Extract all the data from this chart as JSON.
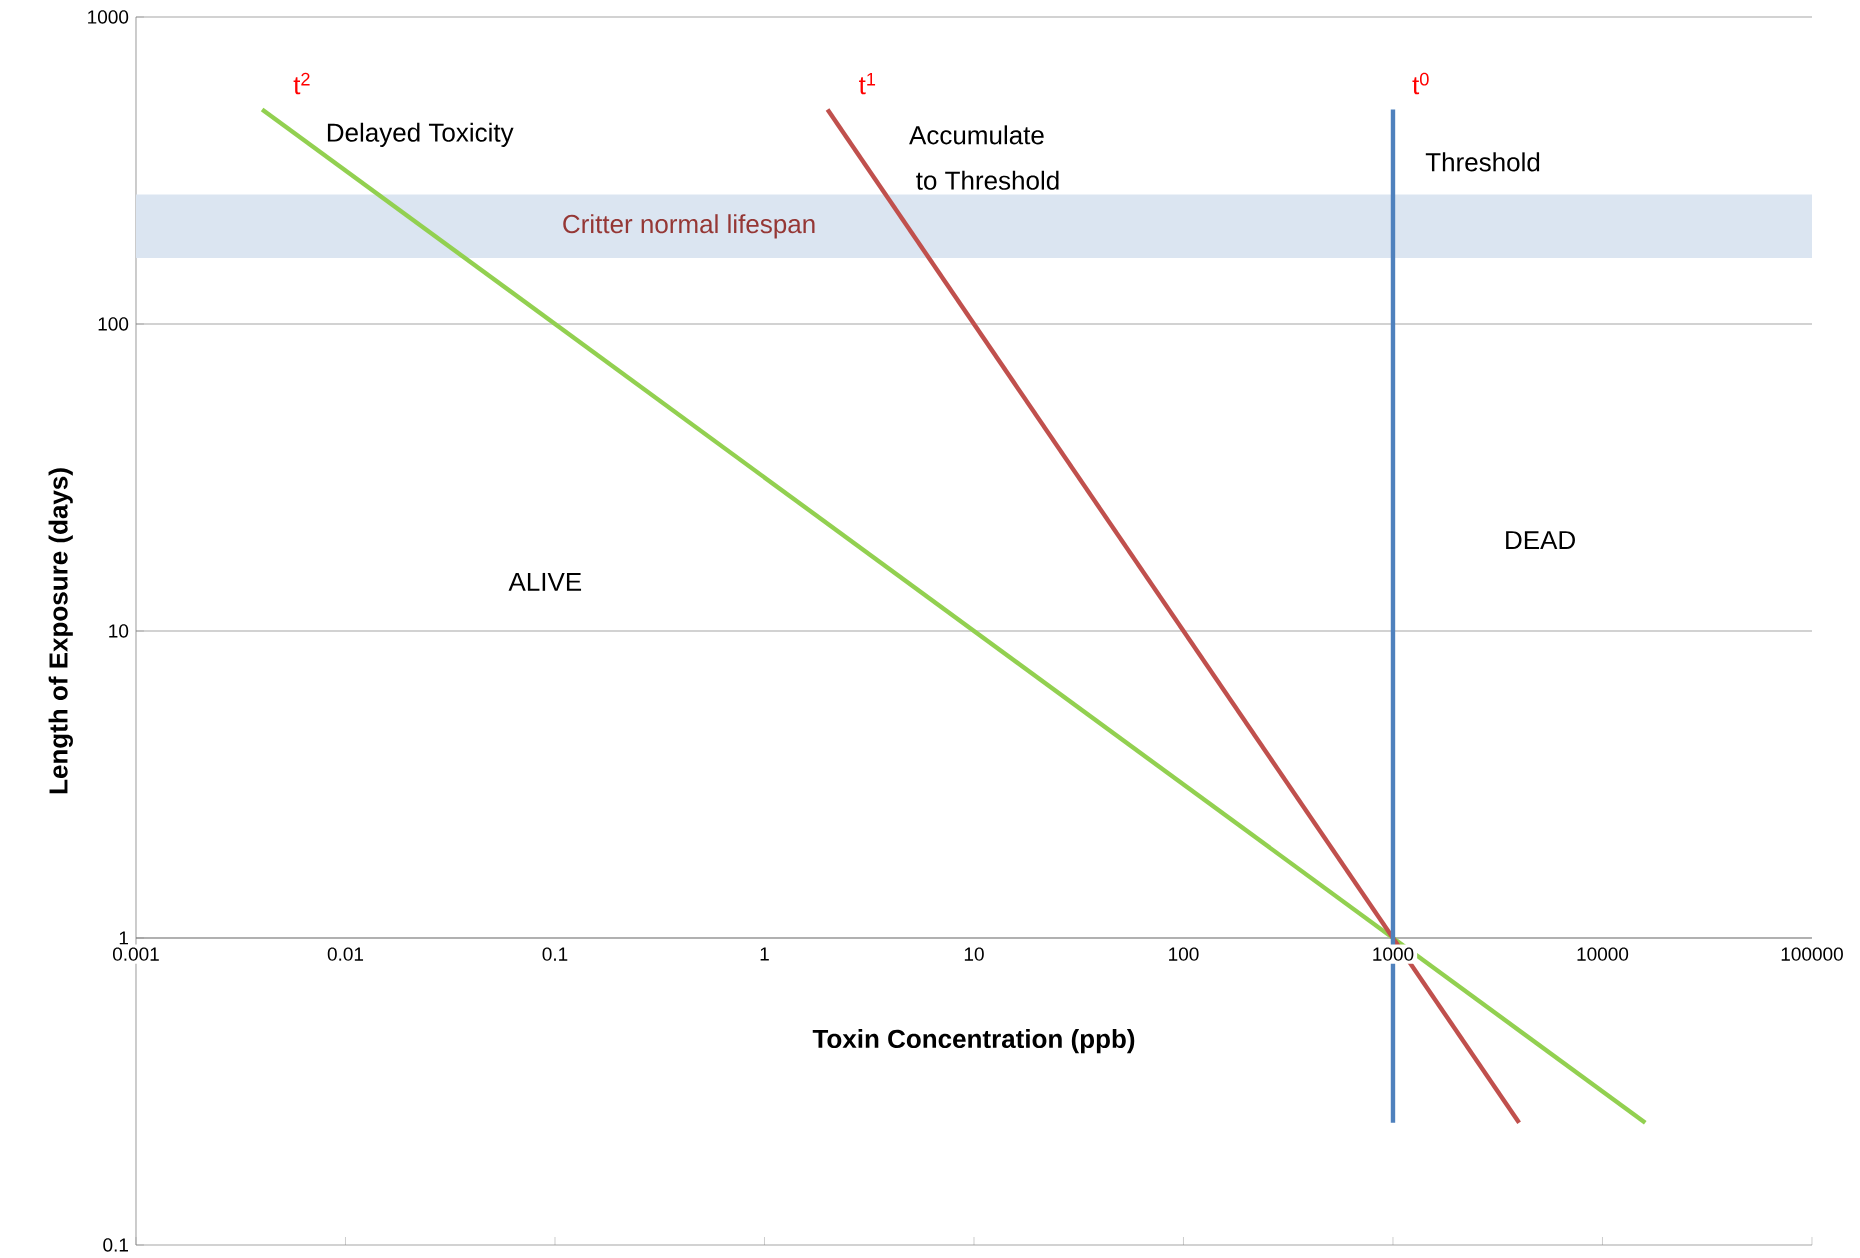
{
  "chart_data": {
    "type": "line",
    "xlabel": "Toxin Concentration (ppb)",
    "ylabel": "Length of Exposure (days)",
    "log": "xy",
    "grid": "y",
    "marker": "none",
    "line_style": "solid",
    "xlim": [
      0.001,
      100000
    ],
    "ylim": [
      0.1,
      1000
    ],
    "xticks": [
      0.001,
      0.01,
      0.1,
      1,
      10,
      100,
      1000,
      10000,
      100000
    ],
    "yticks": [
      0.1,
      1,
      10,
      100,
      1000
    ],
    "series": [
      {
        "name": "t$^{2}$",
        "color": "#92d050",
        "x": [
          0.004,
          16000
        ],
        "values": [
          500,
          0.25
        ]
      },
      {
        "name": "t$^{1}$",
        "color": "#c0504d",
        "x": [
          2,
          4000
        ],
        "values": [
          500,
          0.25
        ]
      },
      {
        "name": "t$^{0}$",
        "color": "#4f81bd",
        "x": [
          1000,
          1000
        ],
        "values": [
          0.25,
          500
        ]
      }
    ],
    "bands": [
      {
        "axis": "y",
        "from": 164,
        "to": 264,
        "label": "Critter normal lifespan",
        "color": "#dbe5f1"
      }
    ],
    "annotations": [
      "Delayed Toxicity",
      "Accumulate",
      "to Threshold",
      "Threshold",
      "ALIVE",
      "DEAD"
    ]
  }
}
